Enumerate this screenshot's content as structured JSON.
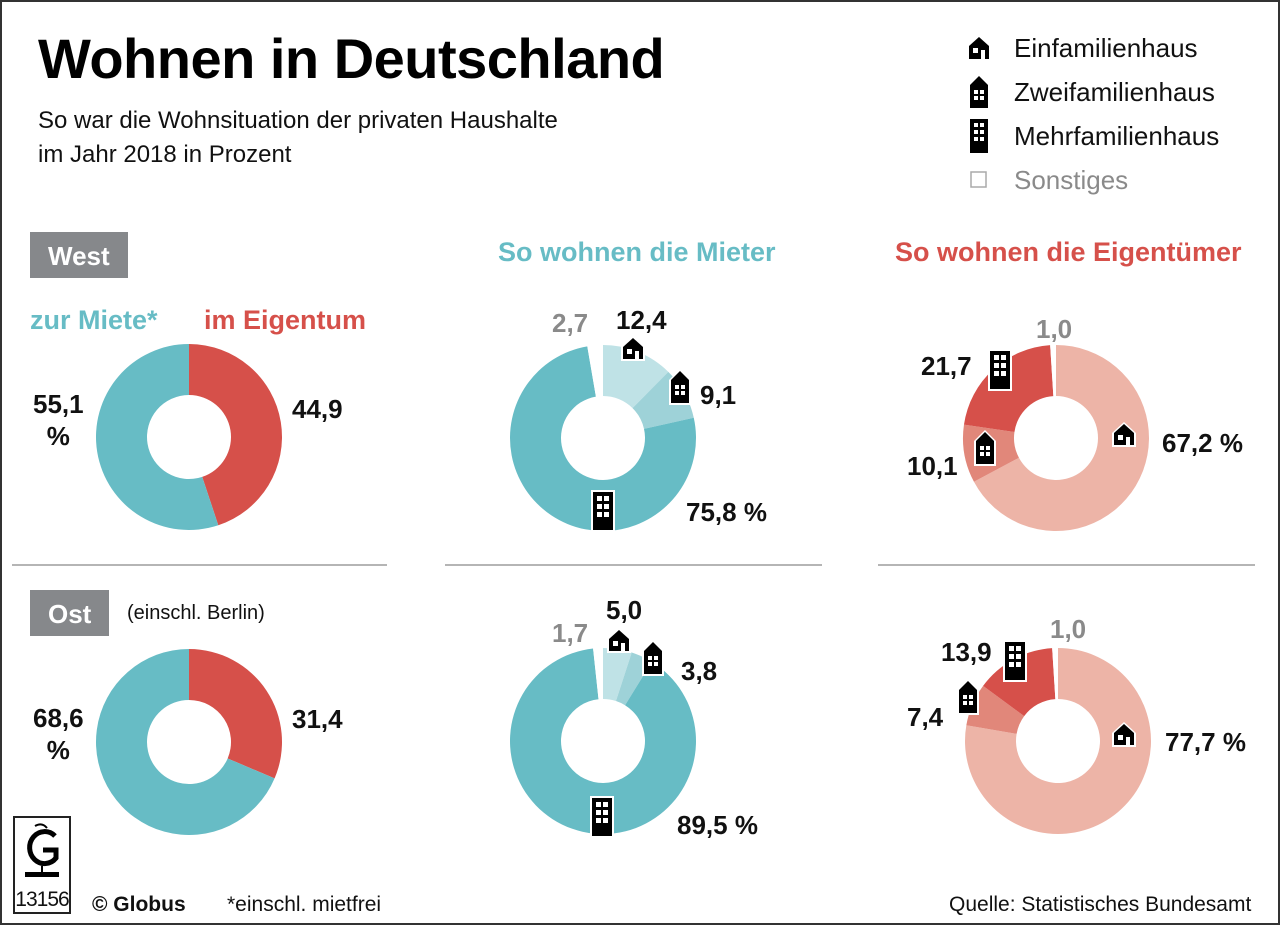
{
  "header": {
    "title": "Wohnen in Deutschland",
    "subtitle_line1": "So war die Wohnsituation der privaten Haushalte",
    "subtitle_line2": "im Jahr 2018 in Prozent"
  },
  "legend": [
    {
      "label": "Einfamilienhaus",
      "icon": "single-family-house-icon"
    },
    {
      "label": "Zweifamilienhaus",
      "icon": "two-family-house-icon"
    },
    {
      "label": "Mehrfamilienhaus",
      "icon": "apartment-building-icon"
    },
    {
      "label": "Sonstiges",
      "icon": "empty-square-icon"
    }
  ],
  "columns": {
    "tenure_mieter_label": "zur Miete*",
    "tenure_eigentum_label": "im Eigentum",
    "renters_title": "So wohnen die Mieter",
    "owners_title": "So wohnen die Eigentümer"
  },
  "regions": {
    "west": {
      "label": "West",
      "note": ""
    },
    "ost": {
      "label": "Ost",
      "note": "(einschl. Berlin)"
    }
  },
  "colors": {
    "teal": "#67bcc5",
    "teal_mid": "#9ed2d8",
    "teal_light": "#bfe2e6",
    "red": "#d6504a",
    "red_mid": "#e1877a",
    "red_light": "#edb4a7",
    "grey_text": "#8a8a8a",
    "tag_bg": "#86888b"
  },
  "chart_data": [
    {
      "type": "pie",
      "title": "West – Wohnverhältnis",
      "categories": [
        "zur Miete*",
        "im Eigentum"
      ],
      "values": [
        55.1,
        44.9
      ],
      "labels": [
        "55,1 %",
        "44,9"
      ]
    },
    {
      "type": "pie",
      "title": "West – So wohnen die Mieter",
      "categories": [
        "Einfamilienhaus",
        "Zweifamilienhaus",
        "Mehrfamilienhaus",
        "Sonstiges"
      ],
      "values": [
        12.4,
        9.1,
        75.8,
        2.7
      ],
      "labels": [
        "12,4",
        "9,1",
        "75,8 %",
        "2,7"
      ]
    },
    {
      "type": "pie",
      "title": "West – So wohnen die Eigentümer",
      "categories": [
        "Einfamilienhaus",
        "Zweifamilienhaus",
        "Mehrfamilienhaus",
        "Sonstiges"
      ],
      "values": [
        67.2,
        10.1,
        21.7,
        1.0
      ],
      "labels": [
        "67,2 %",
        "10,1",
        "21,7",
        "1,0"
      ]
    },
    {
      "type": "pie",
      "title": "Ost (einschl. Berlin) – Wohnverhältnis",
      "categories": [
        "zur Miete*",
        "im Eigentum"
      ],
      "values": [
        68.6,
        31.4
      ],
      "labels": [
        "68,6 %",
        "31,4"
      ]
    },
    {
      "type": "pie",
      "title": "Ost (einschl. Berlin) – So wohnen die Mieter",
      "categories": [
        "Einfamilienhaus",
        "Zweifamilienhaus",
        "Mehrfamilienhaus",
        "Sonstiges"
      ],
      "values": [
        5.0,
        3.8,
        89.5,
        1.7
      ],
      "labels": [
        "5,0",
        "3,8",
        "89,5 %",
        "1,7"
      ]
    },
    {
      "type": "pie",
      "title": "Ost (einschl. Berlin) – So wohnen die Eigentümer",
      "categories": [
        "Einfamilienhaus",
        "Zweifamilienhaus",
        "Mehrfamilienhaus",
        "Sonstiges"
      ],
      "values": [
        77.7,
        7.4,
        13.9,
        1.0
      ],
      "labels": [
        "77,7 %",
        "7,4",
        "13,9",
        "1,0"
      ]
    }
  ],
  "footer": {
    "logo_number": "13156",
    "copyright": "© Globus",
    "footnote": "*einschl. mietfrei",
    "source": "Quelle: Statistisches Bundesamt"
  }
}
